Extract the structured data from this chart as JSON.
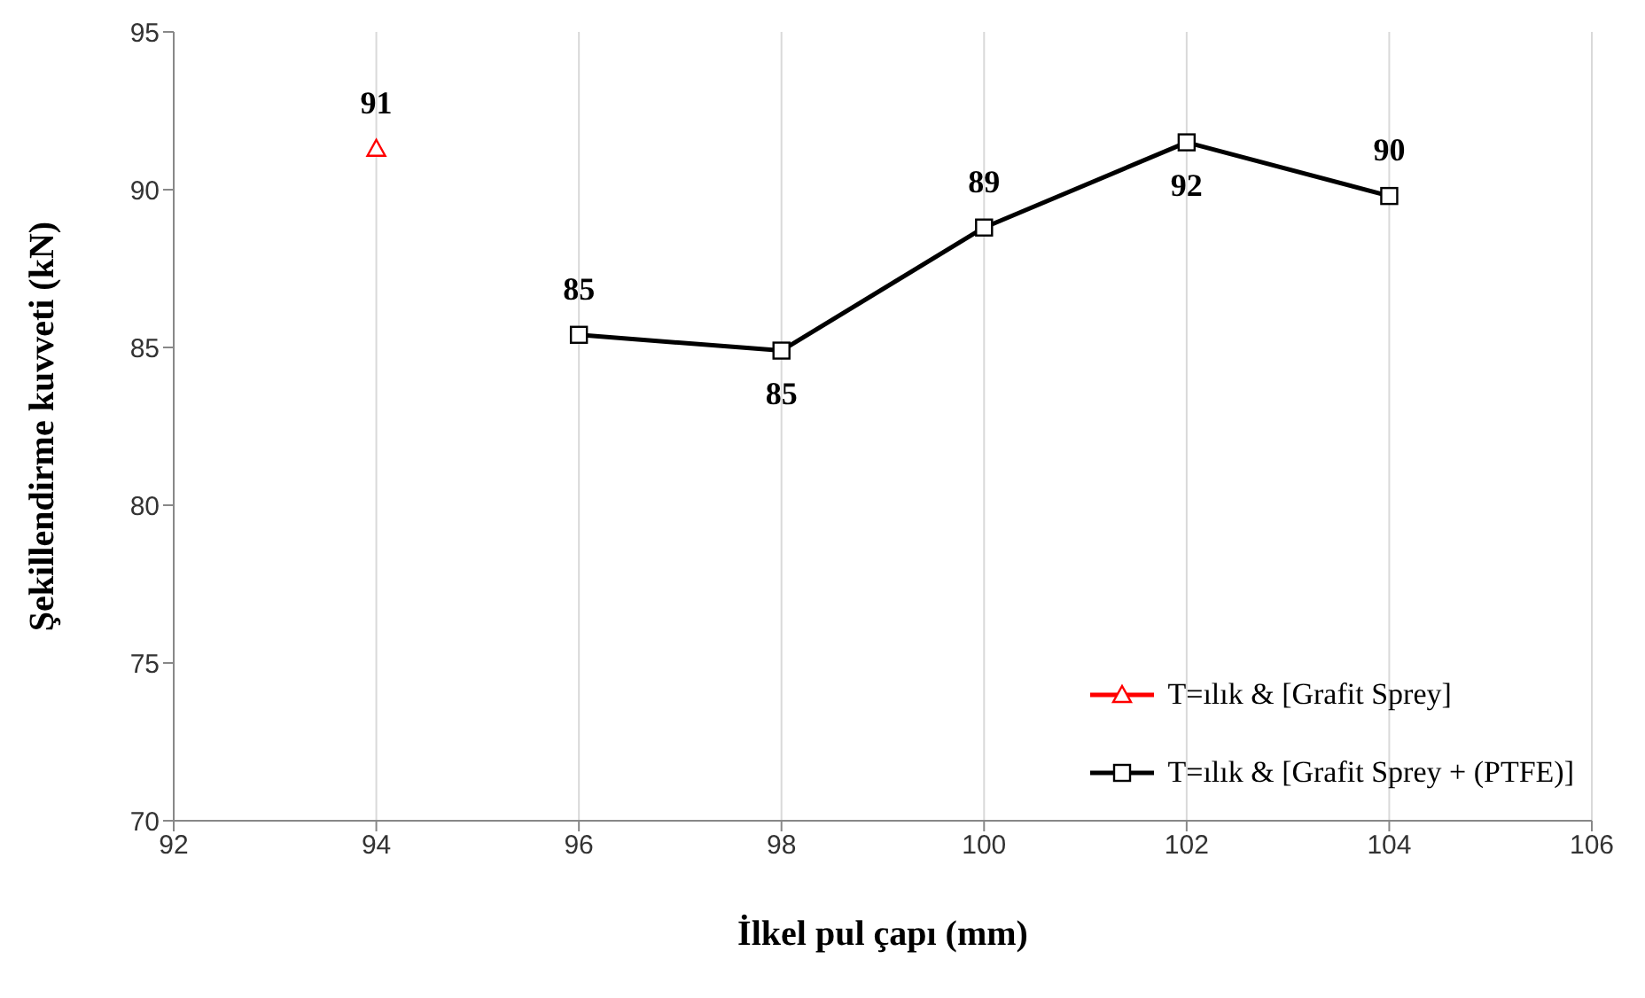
{
  "chart_data": {
    "type": "line",
    "xlabel": "İlkel pul çapı (mm)",
    "ylabel": "Şekillendirme kuvveti (kN)",
    "xlim": [
      92,
      106
    ],
    "xticks": [
      92,
      94,
      96,
      98,
      100,
      102,
      104,
      106
    ],
    "ylim": [
      70,
      95
    ],
    "yticks": [
      70,
      75,
      80,
      85,
      90,
      95
    ],
    "grid": "x",
    "legend": "bottom right",
    "series": [
      {
        "name": "T=ılık & [Grafit Sprey]",
        "color": "#ff0000",
        "marker": "triangle",
        "x": [
          94
        ],
        "values": [
          91.3
        ],
        "value_labels": [
          "91"
        ]
      },
      {
        "name": "T=ılık & [Grafit Sprey + (PTFE)]",
        "color": "#000000",
        "marker": "square",
        "x": [
          96,
          98,
          100,
          102,
          104
        ],
        "values": [
          85.4,
          84.9,
          88.8,
          91.5,
          89.8
        ],
        "value_labels": [
          "85",
          "85",
          "89",
          "92",
          "90"
        ]
      }
    ]
  }
}
